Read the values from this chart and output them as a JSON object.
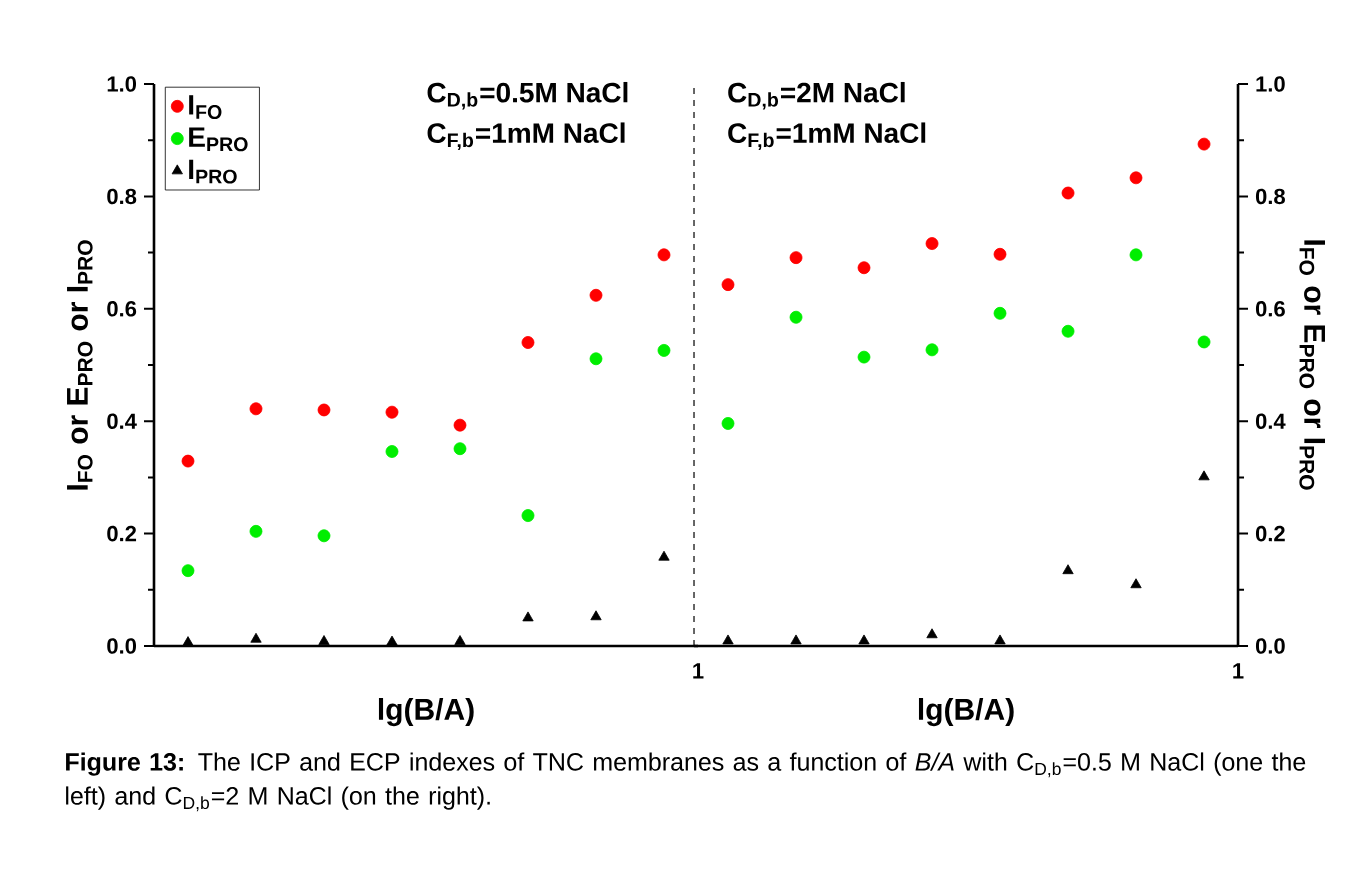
{
  "chart_data": [
    {
      "type": "scatter",
      "xlabel": "lg(B/A)",
      "ylabel": "I$_{FO}$ or E$_{PRO}$ or I$_{PRO}$",
      "categories": [
        null,
        null,
        null,
        null,
        null,
        null,
        null,
        null
      ],
      "series": [
        {
          "name": "I$_{FO}$",
          "color": "#ff0000",
          "marker": "circle",
          "values": [
            0.329,
            0.422,
            0.42,
            0.416,
            0.393,
            0.54,
            0.624,
            0.696
          ]
        },
        {
          "name": "E$_{PRO}$",
          "color": "#00ee00",
          "marker": "circle",
          "values": [
            0.134,
            0.204,
            0.196,
            0.346,
            0.351,
            0.232,
            0.511,
            0.526
          ]
        },
        {
          "name": "I$_{PRO}$",
          "color": "#000000",
          "marker": "triangle",
          "values": [
            0.006,
            0.012,
            0.008,
            0.007,
            0.008,
            0.05,
            0.052,
            0.158
          ]
        }
      ],
      "ylim": [
        0,
        1
      ],
      "yticks": [
        {
          "value": 0,
          "label": "0.0"
        },
        {
          "value": 0.2,
          "label": "0.2"
        },
        {
          "value": 0.4,
          "label": "0.4"
        },
        {
          "value": 0.6,
          "label": "0.6"
        },
        {
          "value": 0.8,
          "label": "0.8"
        },
        {
          "value": 1,
          "label": "1.0"
        }
      ],
      "legend": "top left",
      "grid": false,
      "annotations": [
        "C$_{D,b}$=0.5M NaCl",
        "C$_{F,b}$=1mM NaCl",
        "1"
      ]
    },
    {
      "type": "scatter",
      "xlabel": "lg(B/A)",
      "ylabel": "I$_{FO}$ or E$_{PRO}$ or I$_{PRO}$",
      "categories": [
        null,
        null,
        null,
        null,
        null,
        null,
        null,
        null
      ],
      "series": [
        {
          "color": "#ff0000",
          "marker": "circle",
          "values": [
            0.643,
            0.691,
            0.673,
            0.716,
            0.697,
            0.806,
            0.833,
            0.893
          ]
        },
        {
          "color": "#00ee00",
          "marker": "circle",
          "values": [
            0.396,
            0.585,
            0.514,
            0.527,
            0.592,
            0.56,
            0.696,
            0.541
          ]
        },
        {
          "color": "#000000",
          "marker": "triangle",
          "values": [
            0.009,
            0.009,
            0.009,
            0.02,
            0.009,
            0.134,
            0.109,
            0.301
          ]
        }
      ],
      "ylim": [
        0,
        1
      ],
      "yticks": [
        {
          "value": 0,
          "label": "0.0"
        },
        {
          "value": 0.2,
          "label": "0.2"
        },
        {
          "value": 0.4,
          "label": "0.4"
        },
        {
          "value": 0.6,
          "label": "0.6"
        },
        {
          "value": 0.8,
          "label": "0.8"
        },
        {
          "value": 1,
          "label": "1.0"
        }
      ],
      "grid": false,
      "annotations": [
        "C$_{D,b}$=2M NaCl",
        "C$_{F,b}$=1mM NaCl",
        "1",
        "**Figure 13:** The ICP and ECP indexes of TNC membranes as a function of *B/A* with C$_{D,b}$=0.5 M NaCl (one the left) and C$_{D,b}$=2 M NaCl (on the right)."
      ]
    }
  ]
}
